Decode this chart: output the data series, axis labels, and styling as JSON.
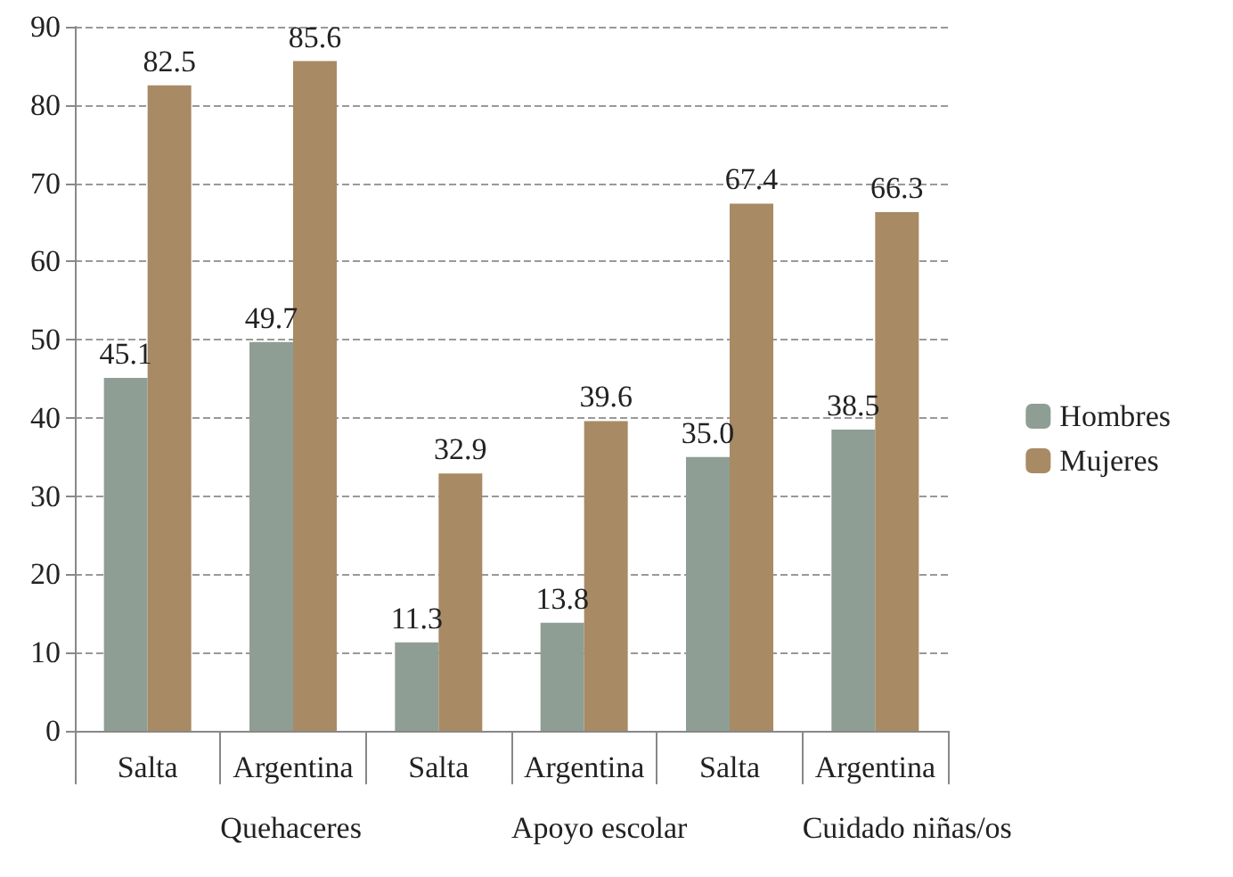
{
  "chart_data": {
    "type": "bar",
    "categories": [
      "Salta",
      "Argentina",
      "Salta",
      "Argentina",
      "Salta",
      "Argentina"
    ],
    "series": [
      {
        "name": "Hombres",
        "color": "#8e9e94",
        "values": [
          45.1,
          49.7,
          11.3,
          13.8,
          35.0,
          38.5
        ],
        "value_labels": [
          "45.1",
          "49.7",
          "11.3",
          "13.8",
          "35.0",
          "38.5"
        ]
      },
      {
        "name": "Mujeres",
        "color": "#a88a64",
        "values": [
          82.5,
          85.6,
          32.9,
          39.6,
          67.4,
          66.3
        ],
        "value_labels": [
          "82.5",
          "85.6",
          "32.9",
          "39.6",
          "67.4",
          "66.3"
        ]
      }
    ],
    "annotations": [
      "Quehaceres",
      "Apoyo escolar",
      "Cuidado niñas/os"
    ],
    "ylim": [
      0,
      90
    ],
    "yticks": [
      0,
      10,
      20,
      30,
      40,
      50,
      60,
      70,
      80,
      90
    ],
    "grid": "y",
    "legend": "right"
  }
}
